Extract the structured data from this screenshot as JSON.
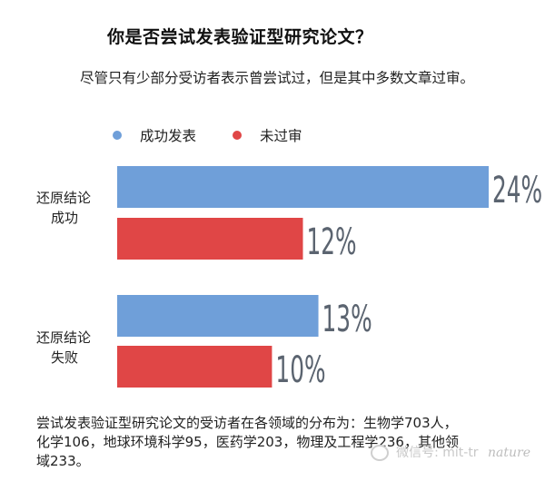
{
  "header": {
    "title": "你是否尝试发表验证型研究论文？",
    "subtitle": "尽管只有少部分受访者表示曾尝试过，但是其中多数文章过审。"
  },
  "colors": {
    "blue": "#6f9fd9",
    "red": "#e04646",
    "label_gray": "#5b6470"
  },
  "chart_data": {
    "type": "bar",
    "orientation": "horizontal",
    "categories": [
      "还原结论\n成功",
      "还原结论\n失败"
    ],
    "series": [
      {
        "name": "成功发表",
        "values": [
          24,
          13
        ],
        "color": "#6f9fd9"
      },
      {
        "name": "未过审",
        "values": [
          12,
          10
        ],
        "color": "#e04646"
      }
    ],
    "value_labels": [
      [
        "24%",
        "12%"
      ],
      [
        "13%",
        "10%"
      ]
    ],
    "xlim": [
      0,
      24
    ],
    "legend_position": "top-left",
    "grid": false
  },
  "footnote": {
    "text": "尝试发表验证型研究论文的受访者在各领域的分布为：生物学703人，化学106，地球环境科学95，医药学203，物理及工程学236，其他领域233。"
  },
  "watermark": {
    "wechat": "微信号: mit-tr",
    "brand": "nature"
  }
}
